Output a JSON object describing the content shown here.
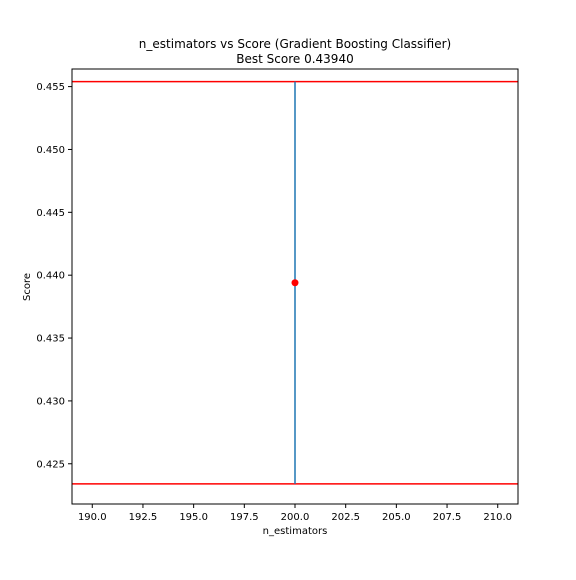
{
  "chart_data": {
    "type": "scatter",
    "title": "n_estimators vs Score (Gradient Boosting Classifier)",
    "subtitle": "Best Score 0.43940",
    "xlabel": "n_estimators",
    "ylabel": "Score",
    "xlim": [
      189.0,
      211.0
    ],
    "ylim": [
      0.4218,
      0.4564
    ],
    "xticks": [
      190.0,
      192.5,
      195.0,
      197.5,
      200.0,
      202.5,
      205.0,
      207.5,
      210.0
    ],
    "xtick_labels": [
      "190.0",
      "192.5",
      "195.0",
      "197.5",
      "200.0",
      "202.5",
      "205.0",
      "207.5",
      "210.0"
    ],
    "yticks": [
      0.425,
      0.43,
      0.435,
      0.44,
      0.445,
      0.45,
      0.455
    ],
    "ytick_labels": [
      "0.425",
      "0.430",
      "0.435",
      "0.440",
      "0.445",
      "0.450",
      "0.455"
    ],
    "grid": false,
    "series": [
      {
        "points": [
          {
            "x": 200.0,
            "y": 0.4394
          }
        ],
        "error_bar": {
          "low": 0.4234,
          "high": 0.4554
        },
        "color": "#ff0000",
        "error_color": "#1f77b4"
      }
    ],
    "reference_lines": [
      {
        "y": 0.4554,
        "color": "#ff0000"
      },
      {
        "y": 0.4234,
        "color": "#ff0000"
      }
    ]
  }
}
